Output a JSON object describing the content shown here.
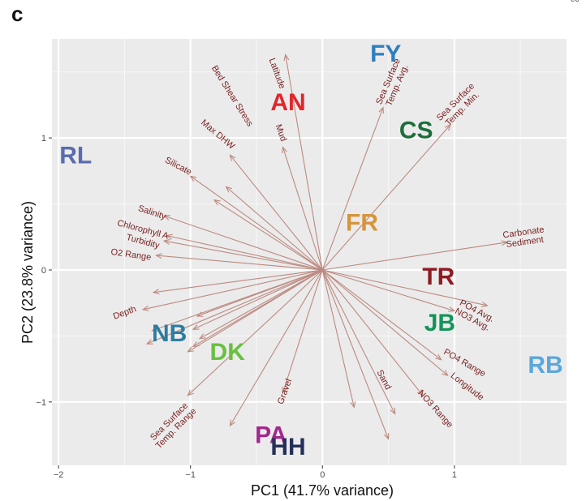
{
  "panel_letter": "c",
  "corner_text": "ec",
  "chart_data": {
    "type": "scatter",
    "subtype": "pca-biplot",
    "title": "",
    "xlabel": "PC1 (41.7% variance)",
    "ylabel": "PC2 (23.8% variance)",
    "xlim": [
      -2.05,
      1.85
    ],
    "ylim": [
      -1.48,
      1.75
    ],
    "xticks": [
      -2,
      -1,
      0,
      1
    ],
    "xtick_labels": [
      "−2",
      "−1",
      "0",
      "1"
    ],
    "yticks": [
      -1,
      0,
      1
    ],
    "ytick_labels": [
      "−1",
      "0",
      "1"
    ],
    "grid": true,
    "background": "#ebebeb",
    "arrow_color": "#bc8a80",
    "label_color": "#7a1f1f",
    "sites": [
      {
        "label": "RL",
        "x": -1.87,
        "y": 0.87,
        "color": "#5b6bb0"
      },
      {
        "label": "AN",
        "x": -0.26,
        "y": 1.27,
        "color": "#e2262b"
      },
      {
        "label": "FY",
        "x": 0.48,
        "y": 1.64,
        "color": "#2f7fbf"
      },
      {
        "label": "CS",
        "x": 0.71,
        "y": 1.06,
        "color": "#1e6e3a"
      },
      {
        "label": "FR",
        "x": 0.3,
        "y": 0.36,
        "color": "#d6943a"
      },
      {
        "label": "TR",
        "x": 0.88,
        "y": -0.05,
        "color": "#8e1b22"
      },
      {
        "label": "JB",
        "x": 0.89,
        "y": -0.4,
        "color": "#14945a"
      },
      {
        "label": "RB",
        "x": 1.69,
        "y": -0.72,
        "color": "#5aa7dc"
      },
      {
        "label": "NB",
        "x": -1.16,
        "y": -0.48,
        "color": "#2d7da0"
      },
      {
        "label": "DK",
        "x": -0.72,
        "y": -0.62,
        "color": "#67c040"
      },
      {
        "label": "PA",
        "x": -0.39,
        "y": -1.25,
        "color": "#a0288c"
      },
      {
        "label": "HH",
        "x": -0.26,
        "y": -1.34,
        "color": "#25305a"
      }
    ],
    "arrows": [
      {
        "x": 0.46,
        "y": 1.23
      },
      {
        "x": 0.97,
        "y": 1.1
      },
      {
        "x": -0.28,
        "y": 1.63
      },
      {
        "x": -0.3,
        "y": 0.93
      },
      {
        "x": -0.7,
        "y": 0.87
      },
      {
        "x": -1.0,
        "y": 0.71
      },
      {
        "x": -1.2,
        "y": 0.41
      },
      {
        "x": -1.18,
        "y": 0.26
      },
      {
        "x": -1.2,
        "y": 0.22
      },
      {
        "x": -1.26,
        "y": 0.11
      },
      {
        "x": -0.73,
        "y": 0.63
      },
      {
        "x": -0.82,
        "y": 0.53
      },
      {
        "x": 1.4,
        "y": 0.21
      },
      {
        "x": 1.0,
        "y": -0.31
      },
      {
        "x": 1.25,
        "y": -0.27
      },
      {
        "x": 0.9,
        "y": -0.68
      },
      {
        "x": 0.95,
        "y": -0.8
      },
      {
        "x": 0.76,
        "y": -0.95
      },
      {
        "x": 0.55,
        "y": -1.09
      },
      {
        "x": 0.5,
        "y": -1.28
      },
      {
        "x": 0.24,
        "y": -1.04
      },
      {
        "x": -0.3,
        "y": -0.93
      },
      {
        "x": -0.7,
        "y": -1.18
      },
      {
        "x": -1.02,
        "y": -0.95
      },
      {
        "x": -1.33,
        "y": -0.56
      },
      {
        "x": -1.36,
        "y": -0.3
      },
      {
        "x": -1.28,
        "y": -0.17
      },
      {
        "x": -0.95,
        "y": -0.35
      },
      {
        "x": -0.98,
        "y": -0.45
      },
      {
        "x": -0.93,
        "y": -0.52
      },
      {
        "x": -0.98,
        "y": -0.58
      },
      {
        "x": -1.02,
        "y": -0.62
      },
      {
        "x": -1.29,
        "y": -0.46
      }
    ],
    "variable_labels": [
      {
        "text": "Latitude",
        "x": -0.34,
        "y": 1.49,
        "angle": 70
      },
      {
        "text": "Bed Shear Stress",
        "x": -0.68,
        "y": 1.32,
        "angle": 58
      },
      {
        "text": "Max DHW",
        "x": -0.79,
        "y": 1.03,
        "angle": 40
      },
      {
        "text": "Mud",
        "x": -0.31,
        "y": 1.04,
        "angle": 70
      },
      {
        "text": "Silicate",
        "x": -1.09,
        "y": 0.79,
        "angle": 28
      },
      {
        "text": "Salinity",
        "x": -1.29,
        "y": 0.44,
        "angle": 18
      },
      {
        "text": "Chlorophyll A",
        "x": -1.36,
        "y": 0.31,
        "angle": 15
      },
      {
        "text": "Turbidity",
        "x": -1.36,
        "y": 0.22,
        "angle": 15
      },
      {
        "text": "O2 Range",
        "x": -1.45,
        "y": 0.12,
        "angle": 8
      },
      {
        "text": "Sea Surface|Temp. Avg.",
        "x": 0.54,
        "y": 1.41,
        "angle": -67
      },
      {
        "text": "Sea Surface|Temp. Min.",
        "x": 1.04,
        "y": 1.24,
        "angle": -45
      },
      {
        "text": "Carbonate|Sediment",
        "x": 1.53,
        "y": 0.24,
        "angle": -8
      },
      {
        "text": "PO4 Avg.|NO3 Avg.",
        "x": 1.15,
        "y": -0.35,
        "angle": 28
      },
      {
        "text": "PO4 Range",
        "x": 1.08,
        "y": -0.7,
        "angle": 30
      },
      {
        "text": "Longitude",
        "x": 1.1,
        "y": -0.88,
        "angle": 38
      },
      {
        "text": "NO3 Range",
        "x": 0.86,
        "y": -1.05,
        "angle": 48
      },
      {
        "text": "Sand",
        "x": 0.47,
        "y": -0.83,
        "angle": 62
      },
      {
        "text": "Gravel",
        "x": -0.29,
        "y": -0.92,
        "angle": -70
      },
      {
        "text": "Depth",
        "x": -1.5,
        "y": -0.32,
        "angle": -20
      },
      {
        "text": "Sea Surface|Temp. Range",
        "x": -1.13,
        "y": -1.18,
        "angle": -45
      }
    ]
  }
}
